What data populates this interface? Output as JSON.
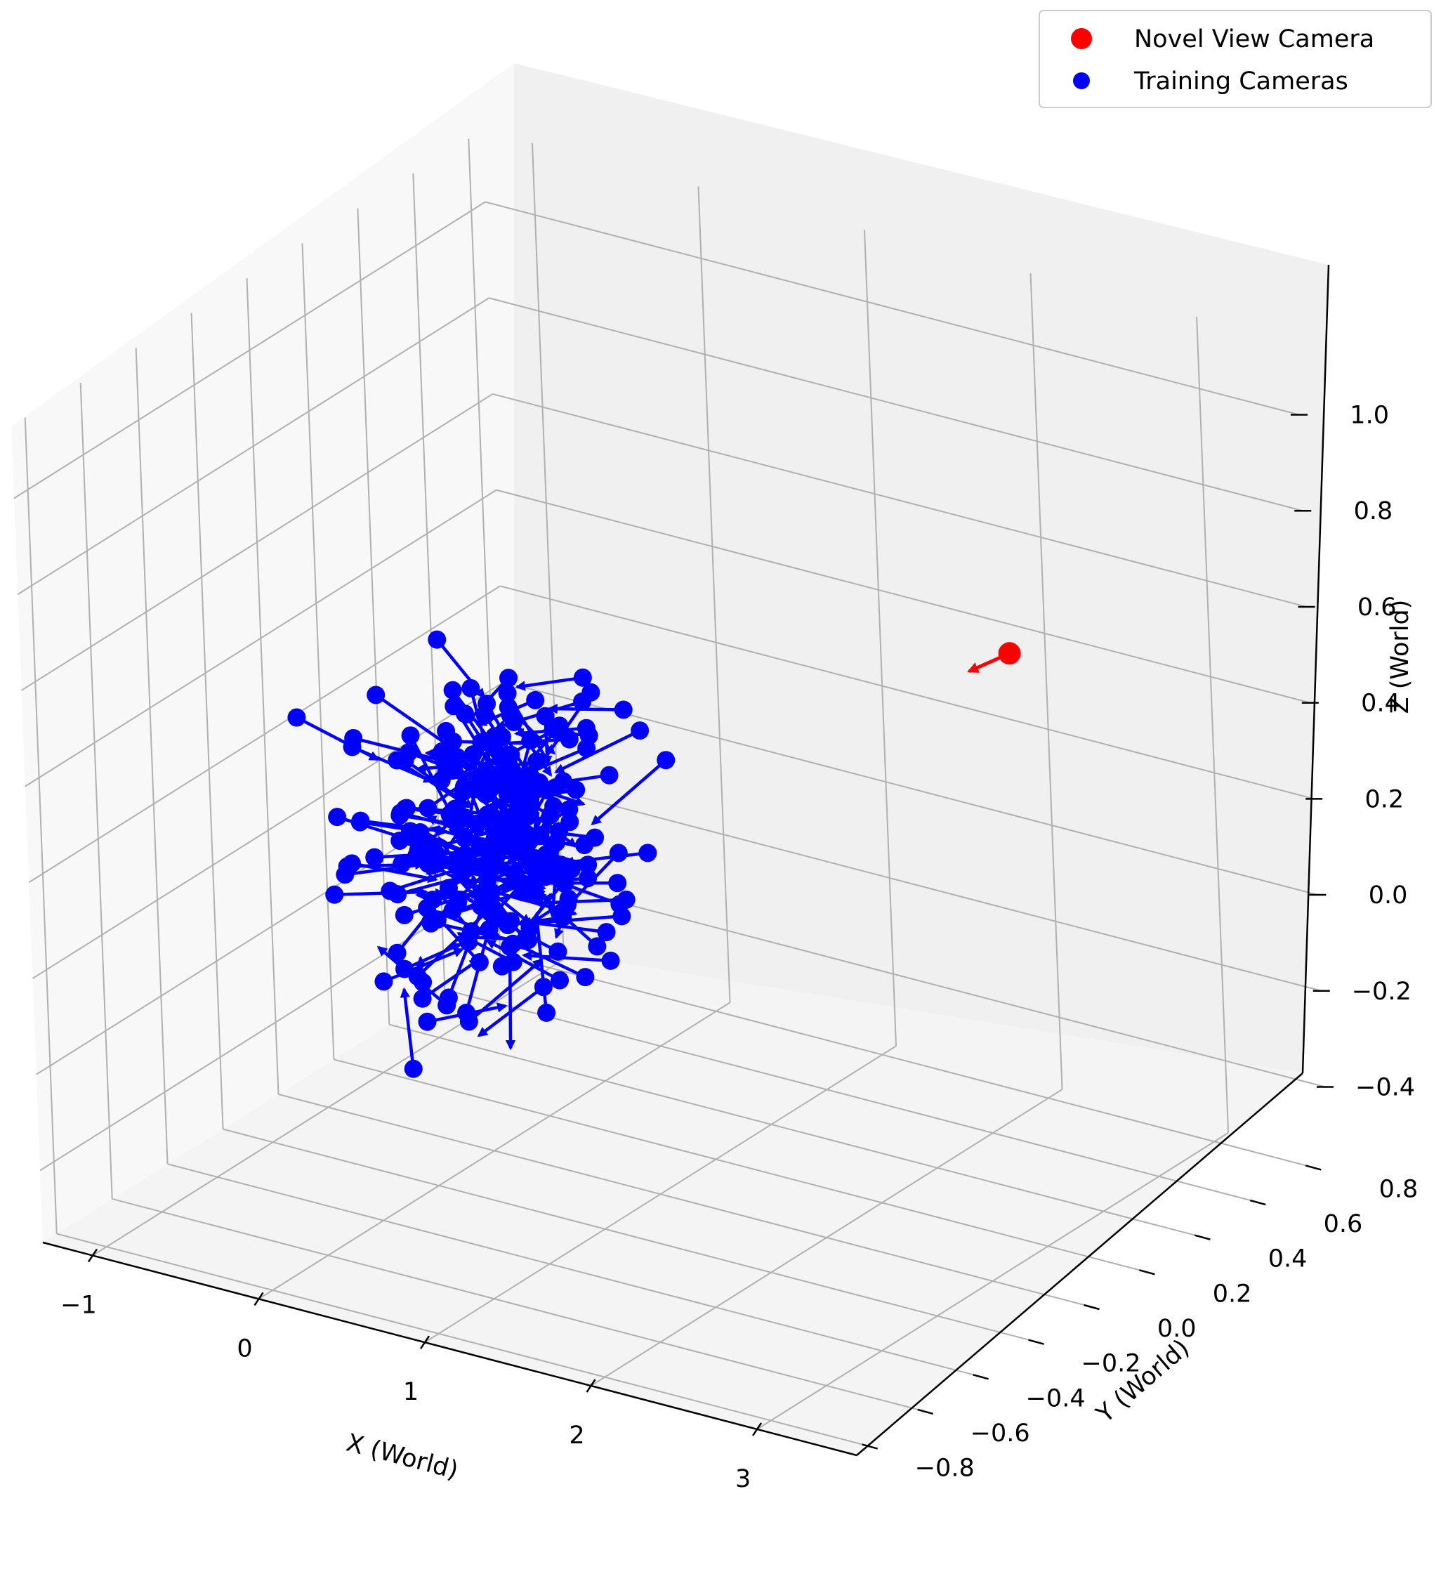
{
  "chart_data": {
    "type": "scatter",
    "projection": "3d",
    "title": "",
    "xlabel": "X (World)",
    "ylabel": "Y (World)",
    "zlabel": "Z (World)",
    "xlim": [
      -1.3,
      3.6
    ],
    "ylim": [
      -0.85,
      0.85
    ],
    "zlim": [
      -0.55,
      1.15
    ],
    "x_ticks": [
      "−1",
      "0",
      "1",
      "2",
      "3"
    ],
    "y_ticks": [
      "−0.8",
      "−0.6",
      "−0.4",
      "−0.2",
      "0.0",
      "0.2",
      "0.4",
      "0.6",
      "0.8"
    ],
    "z_ticks": [
      "−0.4",
      "−0.2",
      "0.0",
      "0.2",
      "0.4",
      "0.6",
      "0.8",
      "1.0"
    ],
    "grid": true,
    "legend_position": "top-right",
    "legend": [
      {
        "label": "Novel View Camera",
        "color": "#ff0000"
      },
      {
        "label": "Training Cameras",
        "color": "#0000ff"
      }
    ],
    "series": [
      {
        "name": "Novel View Camera",
        "color": "#ff0000",
        "points": [
          [
            3.25,
            0.0,
            0.78
          ]
        ],
        "directions": [
          [
            -0.25,
            0.0,
            -0.06
          ]
        ]
      },
      {
        "name": "Training Cameras",
        "color": "#0000ff",
        "point_count": 220,
        "x_range": [
          -1.0,
          1.6
        ],
        "y_range": [
          -0.75,
          0.5
        ],
        "z_range": [
          -0.35,
          0.75
        ],
        "arrow_length": 0.2
      }
    ]
  }
}
